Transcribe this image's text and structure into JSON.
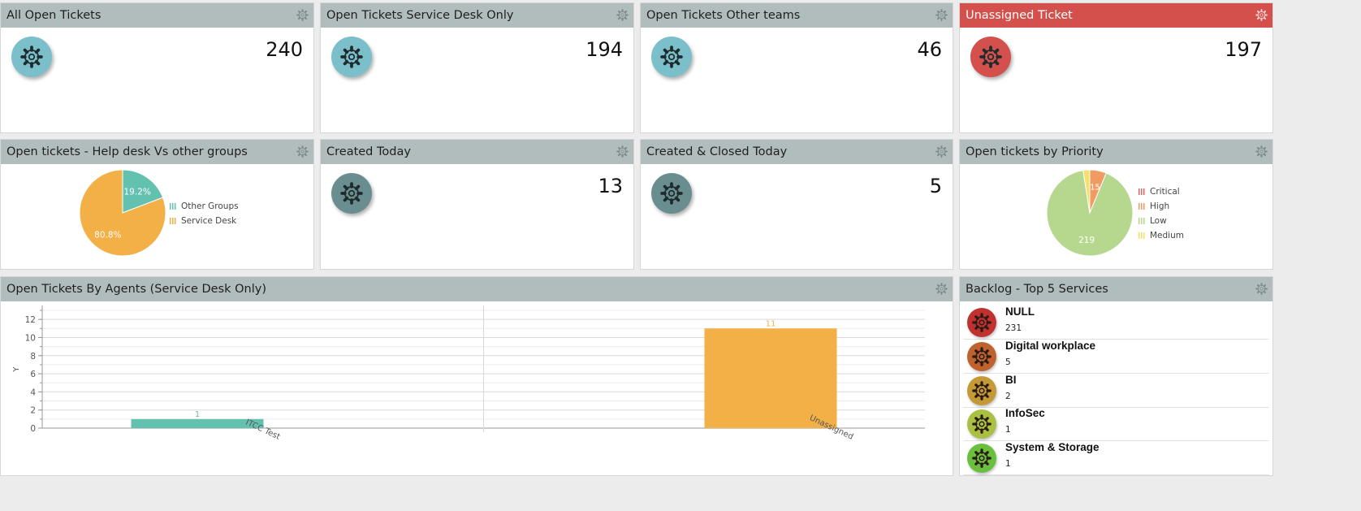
{
  "widgets": {
    "all_open": {
      "title": "All Open Tickets",
      "value": "240",
      "icon": "gear-icon",
      "icon_color": "#7bbfca"
    },
    "service_desk": {
      "title": "Open Tickets Service Desk Only",
      "value": "194",
      "icon": "gear-icon",
      "icon_color": "#7bbfca"
    },
    "other_teams": {
      "title": "Open Tickets Other teams",
      "value": "46",
      "icon": "gear-icon",
      "icon_color": "#7bbfca"
    },
    "unassigned": {
      "title": "Unassigned Ticket",
      "value": "197",
      "icon": "gear-icon",
      "icon_color": "#d4504c",
      "header_color": "#d4504c"
    },
    "helpdesk_vs": {
      "title": "Open tickets - Help desk Vs other groups"
    },
    "created_today": {
      "title": "Created Today",
      "value": "13",
      "icon": "gear-icon",
      "icon_color": "#6a8e90"
    },
    "created_closed": {
      "title": "Created & Closed Today",
      "value": "5",
      "icon": "gear-icon",
      "icon_color": "#6a8e90"
    },
    "by_priority": {
      "title": "Open tickets by Priority"
    },
    "by_agents": {
      "title": "Open Tickets By Agents (Service Desk Only)"
    },
    "backlog": {
      "title": "Backlog - Top 5 Services",
      "items": [
        {
          "name": "NULL",
          "count": "231",
          "color": "#c0312f"
        },
        {
          "name": "Digital workplace",
          "count": "5",
          "color": "#c0622e"
        },
        {
          "name": "BI",
          "count": "2",
          "color": "#c39a35"
        },
        {
          "name": "InfoSec",
          "count": "1",
          "color": "#a9c043"
        },
        {
          "name": "System & Storage",
          "count": "1",
          "color": "#6bbf3f"
        }
      ]
    }
  },
  "chart_data": [
    {
      "type": "pie",
      "categories": [
        "Other Groups",
        "Service Desk"
      ],
      "values": [
        19.2,
        80.8
      ],
      "labels": [
        "19.2%",
        "80.8%"
      ],
      "colors": [
        "#63c1b0",
        "#f2b046"
      ],
      "legend": "right"
    },
    {
      "type": "pie",
      "categories": [
        "Critical",
        "High",
        "Low",
        "Medium"
      ],
      "values": [
        0,
        15,
        219,
        6
      ],
      "labels": [
        "",
        "15",
        "219",
        ""
      ],
      "colors": [
        "#e06666",
        "#ef9b62",
        "#b6d88e",
        "#f4e06a"
      ],
      "legend": "right"
    },
    {
      "type": "bar",
      "categories": [
        "ITCC Test",
        "Unassigned"
      ],
      "values": [
        1,
        11
      ],
      "colors": [
        "#63c1b0",
        "#f2b046"
      ],
      "xlabel": "",
      "ylabel": "Y",
      "ylim": [
        0,
        13
      ],
      "yticks": [
        0,
        2,
        4,
        6,
        8,
        10,
        12
      ],
      "grid": true
    }
  ]
}
